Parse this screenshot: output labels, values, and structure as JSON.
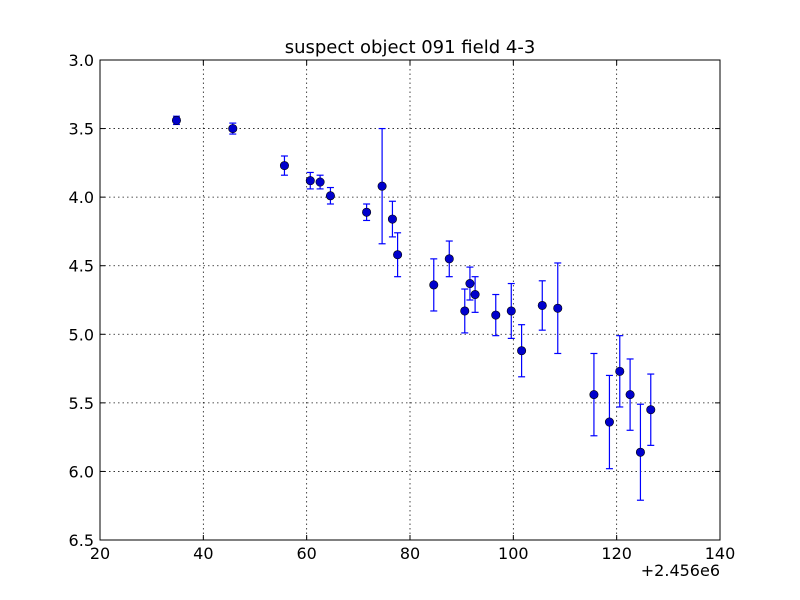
{
  "chart_data": {
    "type": "scatter",
    "title": "suspect object 091 field 4-3",
    "xlabel": "",
    "ylabel": "",
    "x_offset_label": "+2.456e6",
    "xlim": [
      20,
      140
    ],
    "ylim": [
      3.0,
      6.5
    ],
    "y_inverted": true,
    "grid": true,
    "x_ticks": [
      "20",
      "40",
      "60",
      "80",
      "100",
      "120",
      "140"
    ],
    "y_ticks": [
      "3.0",
      "3.5",
      "4.0",
      "4.5",
      "5.0",
      "5.5",
      "6.0",
      "6.5"
    ],
    "colors": {
      "marker": "#0000cc",
      "errorbar": "#0000ff"
    },
    "series": [
      {
        "x": [
          34.8,
          45.7,
          55.7,
          60.7,
          62.6,
          64.6,
          71.6,
          74.6,
          76.6,
          77.6,
          84.6,
          87.6,
          90.6,
          91.6,
          92.6,
          96.6,
          99.6,
          101.6,
          105.6,
          108.6,
          115.6,
          118.6,
          120.6,
          122.6,
          124.6,
          126.6
        ],
        "y": [
          3.44,
          3.5,
          3.77,
          3.88,
          3.89,
          3.99,
          4.11,
          3.92,
          4.16,
          4.42,
          4.64,
          4.45,
          4.83,
          4.63,
          4.71,
          4.86,
          4.83,
          5.12,
          4.79,
          4.81,
          5.44,
          5.64,
          5.27,
          5.44,
          5.86,
          5.55
        ],
        "err": [
          0.03,
          0.04,
          0.07,
          0.06,
          0.05,
          0.06,
          0.06,
          0.42,
          0.13,
          0.16,
          0.19,
          0.13,
          0.16,
          0.12,
          0.13,
          0.15,
          0.2,
          0.19,
          0.18,
          0.33,
          0.3,
          0.34,
          0.26,
          0.26,
          0.35,
          0.26
        ]
      }
    ]
  }
}
